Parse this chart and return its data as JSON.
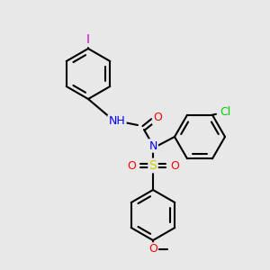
{
  "bg_color": "#e8e8e8",
  "bond_color": "#000000",
  "bond_width": 1.5,
  "atom_colors": {
    "I": "#cc00cc",
    "Cl": "#00cc00",
    "N": "#0000ff",
    "O": "#ff0000",
    "S": "#cccc00",
    "C": "#000000",
    "H": "#555555"
  },
  "font_size": 9,
  "figsize": [
    3.0,
    3.0
  ],
  "dpi": 100
}
